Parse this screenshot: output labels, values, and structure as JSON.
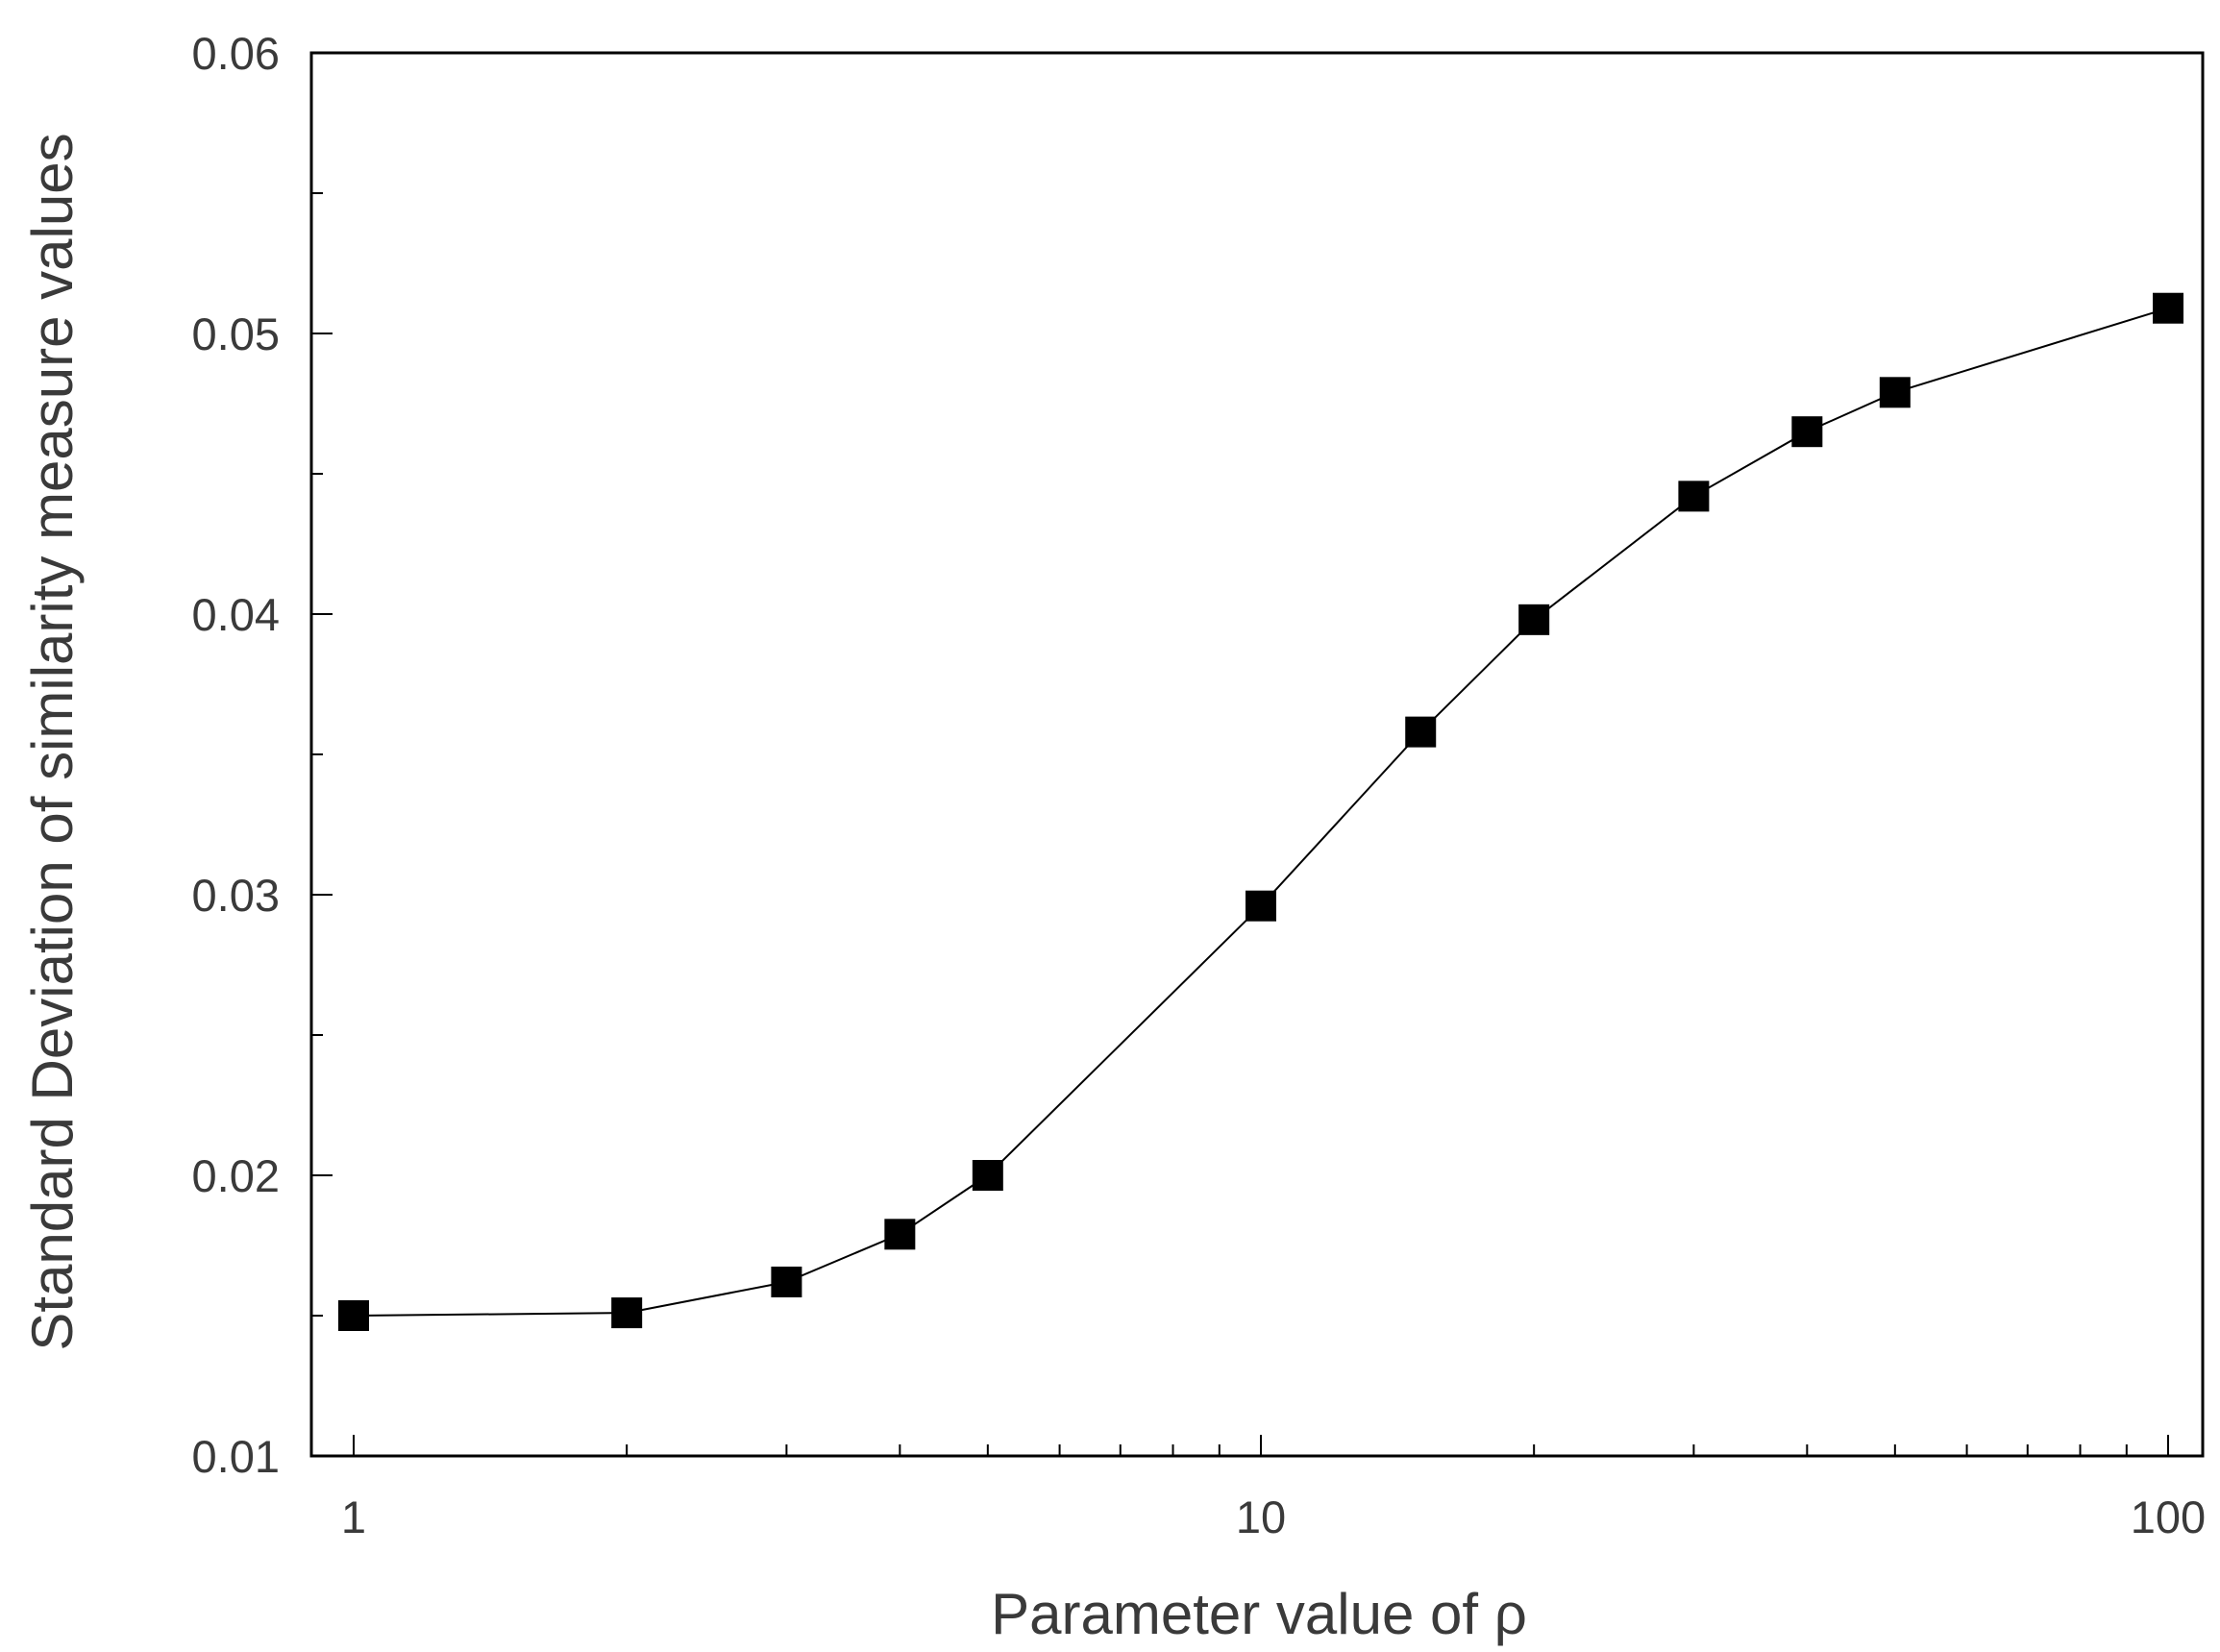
{
  "chart_data": {
    "type": "line",
    "title": "",
    "xlabel": "Parameter value of ρ",
    "ylabel": "Standard Deviation of similarity measure values",
    "x_scale": "log",
    "xlim": [
      1,
      100
    ],
    "ylim": [
      0.01,
      0.06
    ],
    "x_ticks": [
      {
        "value": 1,
        "label": "1"
      },
      {
        "value": 10,
        "label": "10"
      },
      {
        "value": 100,
        "label": "100"
      }
    ],
    "y_ticks": [
      {
        "value": 0.01,
        "label": "0.01"
      },
      {
        "value": 0.02,
        "label": "0.02"
      },
      {
        "value": 0.03,
        "label": "0.03"
      },
      {
        "value": 0.04,
        "label": "0.04"
      },
      {
        "value": 0.05,
        "label": "0.05"
      },
      {
        "value": 0.06,
        "label": "0.06"
      }
    ],
    "grid": false,
    "legend": "none",
    "colors": {
      "line": "#000000",
      "marker": "#000000",
      "axis": "#000000",
      "text": "#3a3a3a"
    },
    "marker": "square",
    "series": [
      {
        "x": [
          1,
          2,
          3,
          4,
          5,
          10,
          15,
          20,
          30,
          40,
          50,
          100
        ],
        "y": [
          0.015,
          0.0151,
          0.0162,
          0.0179,
          0.02,
          0.0296,
          0.0358,
          0.0398,
          0.0442,
          0.0465,
          0.0479,
          0.0509
        ]
      }
    ]
  }
}
